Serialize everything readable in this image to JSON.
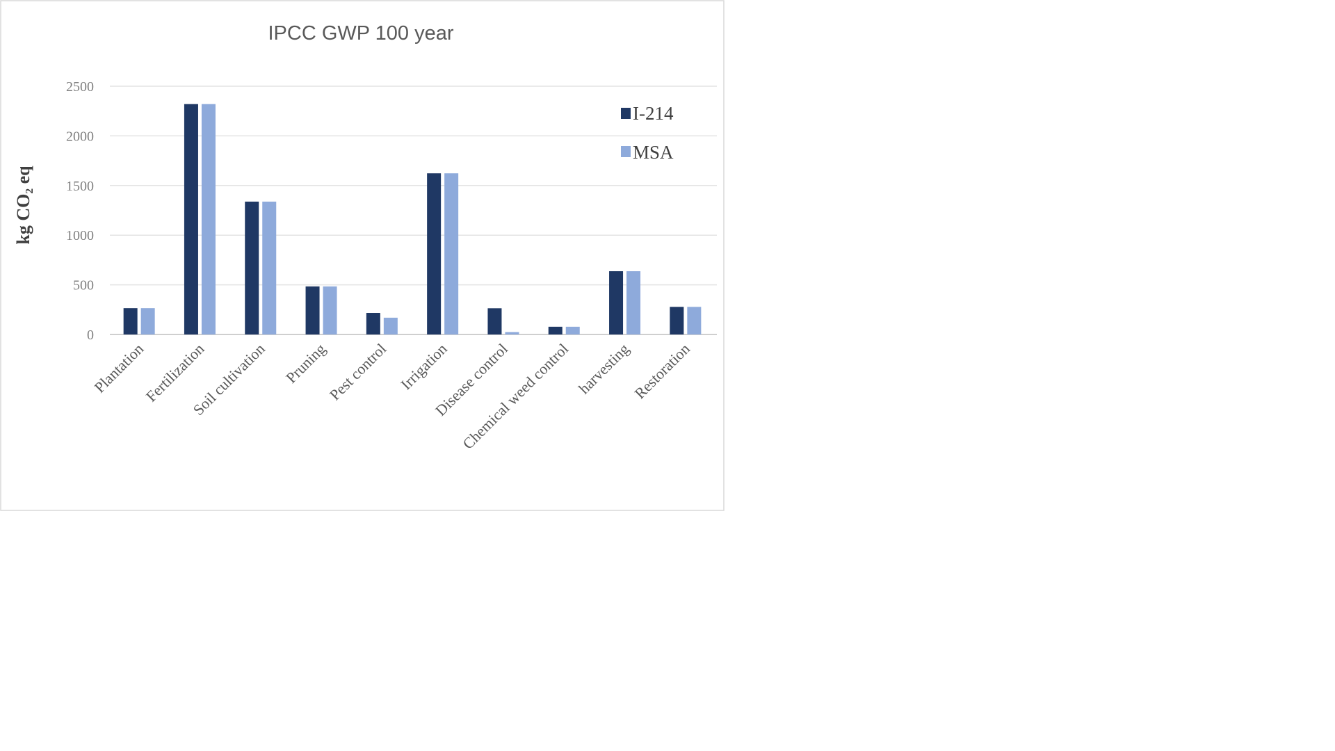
{
  "chart_data": {
    "type": "bar",
    "title": "IPCC GWP 100 year",
    "xlabel": "",
    "ylabel": "kg CO₂ eq",
    "ylim": [
      0,
      2500
    ],
    "yticks": [
      "0",
      "500",
      "1000",
      "1500",
      "2000",
      "2500"
    ],
    "grid": true,
    "legend_position": "top-right",
    "categories": [
      "Plantation",
      "Fertilization",
      "Soil cultivation",
      "Pruning",
      "Pest control",
      "Irrigation",
      "Disease control",
      "Chemical weed control",
      "harvesting",
      "Restoration"
    ],
    "series": [
      {
        "name": "I-214",
        "color": "#1f3864",
        "values": [
          265,
          2320,
          1338,
          484,
          217,
          1623,
          264,
          78,
          637,
          278
        ]
      },
      {
        "name": "MSA",
        "color": "#8eaadb",
        "values": [
          265,
          2320,
          1338,
          484,
          169,
          1623,
          24,
          78,
          637,
          278
        ]
      }
    ]
  }
}
